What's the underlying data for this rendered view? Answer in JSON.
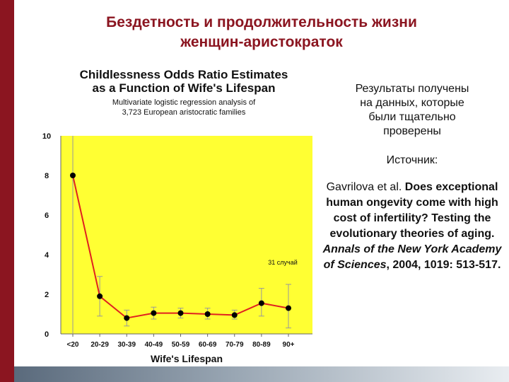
{
  "slide": {
    "title_line1": "Бездетность и продолжительность жизни",
    "title_line2": "женщин-аристократок"
  },
  "side_panel": {
    "results_line1": "Результаты получены",
    "results_line2": "на данных, которые",
    "results_line3": "были тщательно",
    "results_line4": "проверены",
    "source_label": "Источник:",
    "citation_authors": "Gavrilova et al.",
    "citation_title": "Does exceptional human ongevity come with high cost of infertility? Testing the evolutionary theories of aging.",
    "citation_journal": "Annals of the New York Academy of Sciences",
    "citation_details": ", 2004, 1019: 513-517."
  },
  "colors": {
    "title": "#8b1520",
    "plot_background": "#ffff33",
    "line": "#e02020",
    "error_bar": "#999999",
    "marker": "#000000"
  },
  "chart_data": {
    "type": "line",
    "title_line1": "Childlessness Odds Ratio Estimates",
    "title_line2": "as a Function of Wife's Lifespan",
    "subtitle_line1": "Multivariate logistic regression analysis of",
    "subtitle_line2": "3,723 European aristocratic families",
    "xlabel": "Wife's Lifespan",
    "ylabel": "",
    "categories": [
      "<20",
      "20-29",
      "30-39",
      "40-49",
      "50-59",
      "60-69",
      "70-79",
      "80-89",
      "90+"
    ],
    "series": [
      {
        "values": [
          8.0,
          1.9,
          0.8,
          1.05,
          1.05,
          1.0,
          0.95,
          1.55,
          1.3
        ],
        "error_low": [
          0.0,
          0.9,
          0.4,
          0.75,
          0.8,
          0.75,
          0.75,
          0.9,
          0.3
        ],
        "error_high": [
          10.0,
          2.9,
          1.2,
          1.35,
          1.3,
          1.3,
          1.2,
          2.3,
          2.5
        ]
      }
    ],
    "annotation": "31 случай",
    "ylim": [
      0,
      10
    ],
    "yticks": [
      0,
      2,
      4,
      6,
      8,
      10
    ],
    "grid": false
  }
}
